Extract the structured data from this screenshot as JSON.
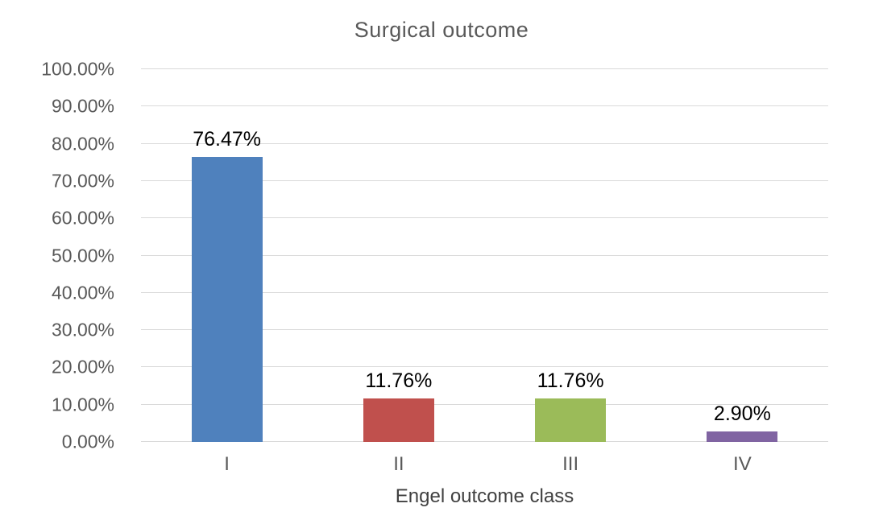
{
  "chart_data": {
    "type": "bar",
    "title": "Surgical outcome",
    "xlabel": "Engel outcome class",
    "ylabel": "",
    "categories": [
      "I",
      "II",
      "III",
      "IV"
    ],
    "values": [
      76.47,
      11.76,
      11.76,
      2.9
    ],
    "data_labels": [
      "76.47%",
      "11.76%",
      "11.76%",
      "2.90%"
    ],
    "bar_colors": [
      "#4F81BD",
      "#C0504D",
      "#9BBB59",
      "#8064A2"
    ],
    "ylim": [
      0,
      100
    ],
    "ytick_step": 10,
    "ytick_labels": [
      "0.00%",
      "10.00%",
      "20.00%",
      "30.00%",
      "40.00%",
      "50.00%",
      "60.00%",
      "70.00%",
      "80.00%",
      "90.00%",
      "100.00%"
    ],
    "grid": "horizontal",
    "legend": "none",
    "colors": {
      "gridline": "#D9D9D9",
      "title_text": "#595959",
      "tick_label_text": "#595959",
      "axis_title_text": "#404040",
      "data_label_text": "#000000",
      "background": "#FFFFFF"
    }
  }
}
